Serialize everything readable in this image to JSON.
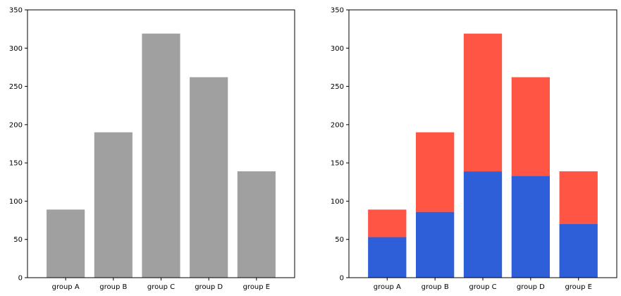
{
  "chart_data": [
    {
      "type": "bar",
      "categories": [
        "group A",
        "group B",
        "group C",
        "group D",
        "group E"
      ],
      "series": [
        {
          "values": [
            89,
            190,
            319,
            262,
            139
          ],
          "color": "#a0a0a0"
        }
      ],
      "ylim": [
        0,
        350
      ],
      "yticks": [
        0,
        50,
        100,
        150,
        200,
        250,
        300,
        350
      ],
      "grid": false,
      "title": "",
      "xlabel": "",
      "ylabel": ""
    },
    {
      "type": "bar",
      "stacked": true,
      "categories": [
        "group A",
        "group B",
        "group C",
        "group D",
        "group E"
      ],
      "series": [
        {
          "values": [
            53,
            86,
            139,
            133,
            70
          ],
          "color": "#2e5fd8"
        },
        {
          "values": [
            36,
            104,
            180,
            129,
            69
          ],
          "color": "#ff5545"
        }
      ],
      "ylim": [
        0,
        350
      ],
      "yticks": [
        0,
        50,
        100,
        150,
        200,
        250,
        300,
        350
      ],
      "grid": false,
      "title": "",
      "xlabel": "",
      "ylabel": ""
    }
  ]
}
